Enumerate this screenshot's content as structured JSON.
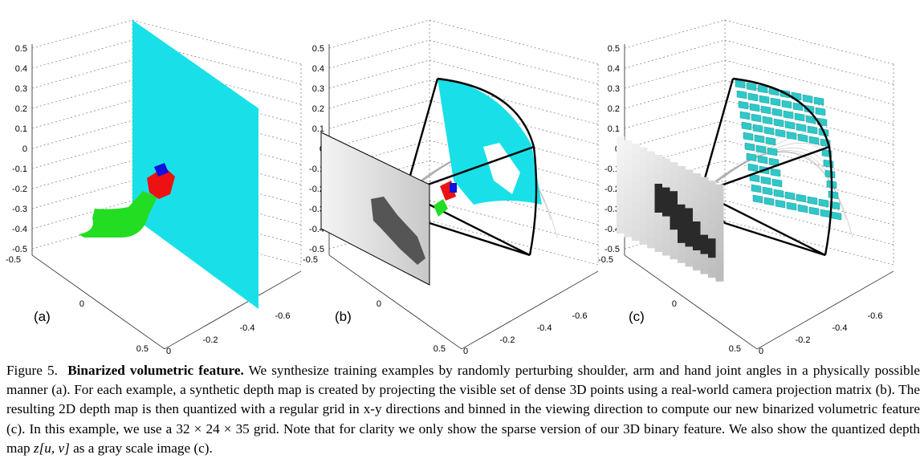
{
  "figure": {
    "panels": [
      {
        "id": "a",
        "label": "(a)"
      },
      {
        "id": "b",
        "label": "(b)"
      },
      {
        "id": "c",
        "label": "(c)"
      }
    ],
    "z_ticks": [
      "0.5",
      "0.4",
      "0.3",
      "0.2",
      "0.1",
      "0",
      "-0.1",
      "-0.2",
      "-0.3",
      "-0.4",
      "-0.5"
    ],
    "x_ticks": [
      "-0.5",
      "0",
      "0.5"
    ],
    "y_ticks": [
      "0",
      "-0.2",
      "-0.4",
      "-0.6"
    ],
    "colors": {
      "point_cloud": "#19e0e8",
      "arm": "#22dd22",
      "hand": "#ee1111",
      "fingers": "#1111dd",
      "voxels": "#2fc8c8",
      "frustum": "#000000",
      "grid": "#999999"
    }
  },
  "caption": {
    "figure_label": "Figure 5.",
    "title": "Binarized volumetric feature.",
    "text_1": " We synthesize training examples by randomly perturbing shoulder, arm and hand joint angles in a physically possible manner (a). For each example, a synthetic depth map is created by projecting the visible set of dense 3D points using a real-world camera projection matrix (b). The resulting 2D depth map is then quantized with a regular grid in x-y directions and binned in the viewing direction to compute our new binarized volumetric feature (c). In this example, we use a 32 × 24 × 35 grid. Note that for clarity we only show the sparse version of our 3D binary feature. We also show the quantized depth map ",
    "math": "z[u, v]",
    "text_2": " as a gray scale image (c)."
  }
}
